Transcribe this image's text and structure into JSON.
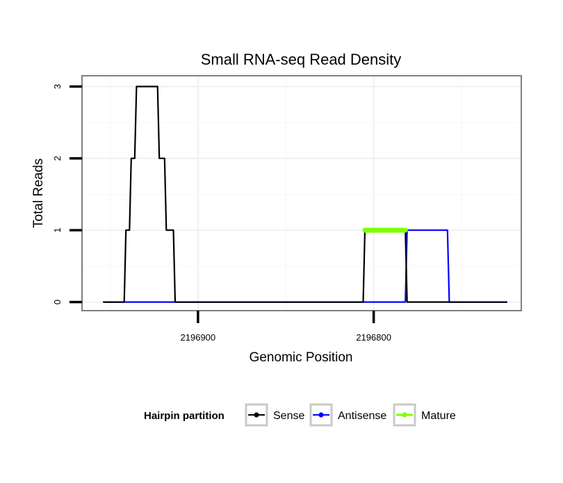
{
  "chart_data": {
    "type": "line",
    "title": "Small RNA-seq Read Density",
    "xlabel": "Genomic Position",
    "ylabel": "Total Reads",
    "xlim": [
      2196966,
      2196716
    ],
    "ylim": [
      -0.12,
      3.15
    ],
    "x_reversed": true,
    "x_ticks": [
      2196900,
      2196800
    ],
    "x_tick_labels": [
      "2196900",
      "2196800"
    ],
    "y_ticks": [
      0,
      1,
      2,
      3
    ],
    "y_tick_labels": [
      "0",
      "1",
      "2",
      "3"
    ],
    "grid": true,
    "legend": {
      "title": "Hairpin partition",
      "position": "bottom",
      "entries": [
        "Sense",
        "Antisense",
        "Mature"
      ]
    },
    "series": [
      {
        "name": "Sense",
        "color": "#000000",
        "x": [
          2196954,
          2196942,
          2196941,
          2196939,
          2196938,
          2196936,
          2196935,
          2196923,
          2196922,
          2196919,
          2196918,
          2196914,
          2196913,
          2196806,
          2196805,
          2196782,
          2196781,
          2196724
        ],
        "y": [
          0,
          0,
          1,
          1,
          2,
          2,
          3,
          3,
          2,
          2,
          1,
          1,
          0,
          0,
          1,
          1,
          0,
          0
        ]
      },
      {
        "name": "Antisense",
        "color": "#0000ff",
        "x": [
          2196954,
          2196782,
          2196781,
          2196758,
          2196757,
          2196724
        ],
        "y": [
          0,
          0,
          1,
          1,
          0,
          0
        ]
      },
      {
        "name": "Mature",
        "color": "#7fff00",
        "x": [
          2196805,
          2196782
        ],
        "y": [
          1,
          1
        ]
      }
    ]
  }
}
